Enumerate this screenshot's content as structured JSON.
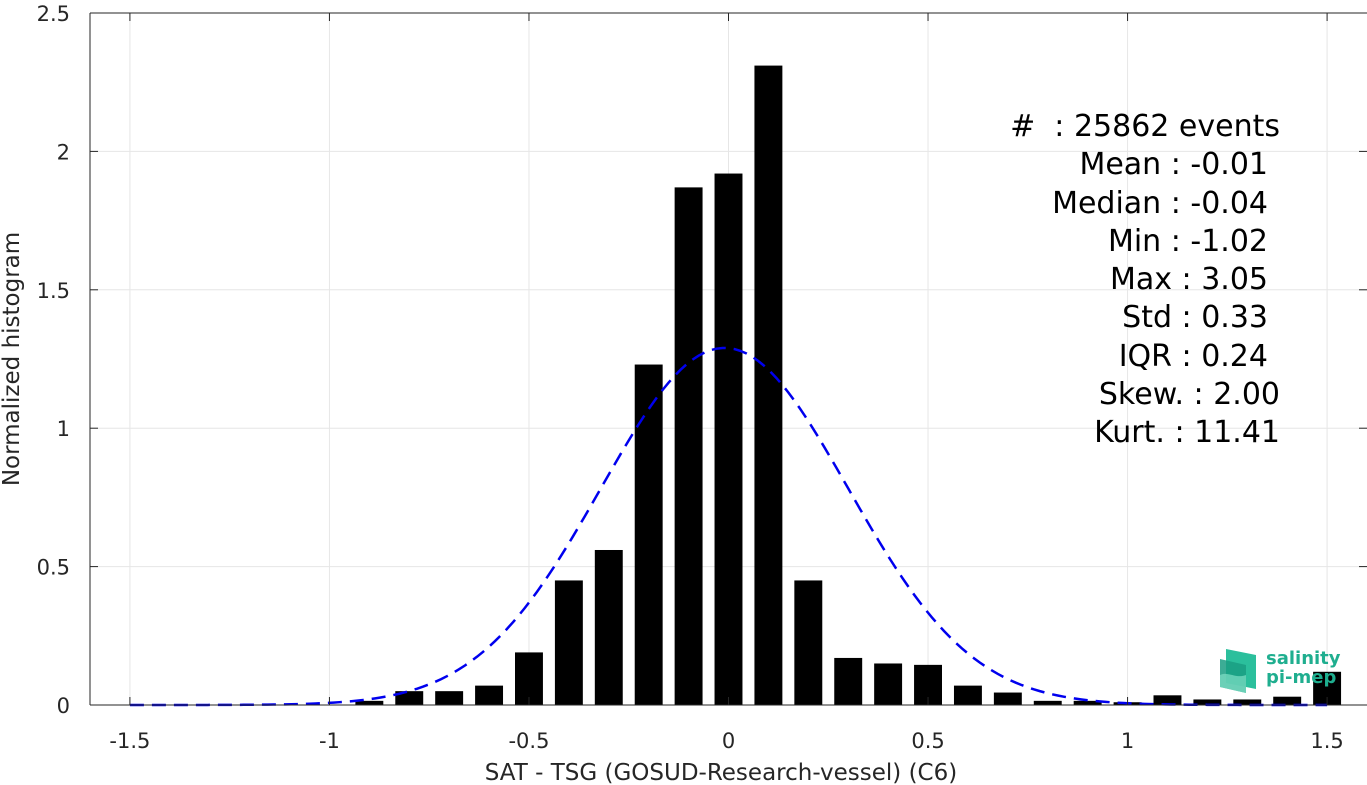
{
  "chart_data": {
    "type": "bar",
    "xlabel": "SAT - TSG (GOSUD-Research-vessel) (C6)",
    "ylabel": "Normalized histogram",
    "xlim": [
      -1.6,
      1.6
    ],
    "ylim": [
      0,
      2.5
    ],
    "xticks": [
      "-1.5",
      "-1",
      "-0.5",
      "0",
      "0.5",
      "1",
      "1.5"
    ],
    "xtick_values": [
      -1.5,
      -1,
      -0.5,
      0,
      0.5,
      1,
      1.5
    ],
    "yticks": [
      "0",
      "0.5",
      "1",
      "1.5",
      "2",
      "2.5"
    ],
    "ytick_values": [
      0,
      0.5,
      1,
      1.5,
      2,
      2.5
    ],
    "grid": true,
    "bar_color": "#000000",
    "bar_width": 0.07,
    "bins": [
      -0.9,
      -0.8,
      -0.7,
      -0.6,
      -0.5,
      -0.4,
      -0.3,
      -0.2,
      -0.1,
      0.0,
      0.1,
      0.2,
      0.3,
      0.4,
      0.5,
      0.6,
      0.7,
      0.8,
      0.9,
      1.0,
      1.1,
      1.2,
      1.3,
      1.4,
      1.5
    ],
    "values": [
      0.015,
      0.05,
      0.05,
      0.07,
      0.19,
      0.45,
      0.56,
      1.23,
      1.87,
      1.92,
      2.31,
      0.45,
      0.17,
      0.15,
      0.145,
      0.07,
      0.045,
      0.015,
      0.015,
      0.01,
      0.035,
      0.02,
      0.02,
      0.03,
      0.12
    ],
    "fit_curve": {
      "type": "gaussian",
      "mean": -0.01,
      "std": 0.31,
      "peak": 1.29,
      "color": "#0000ee",
      "style": "dashed",
      "x_range": [
        -1.5,
        1.5
      ]
    },
    "annotations": [
      "#  : 25862 events",
      "Mean : -0.01",
      "Median : -0.04",
      "Min : -1.02",
      "Max : 3.05",
      "Std : 0.33",
      "IQR : 0.24",
      "Skew. : 2.00",
      "Kurt. : 11.41"
    ]
  },
  "logo": {
    "line1": "salinity",
    "line2": "pi-mep",
    "color": "#1fae8f"
  }
}
